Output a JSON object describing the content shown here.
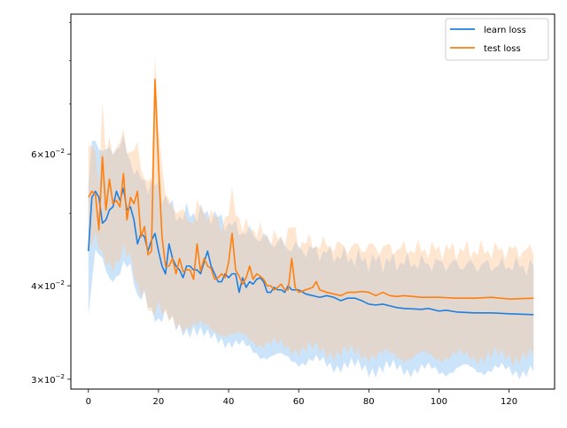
{
  "chart_data": {
    "type": "line",
    "title": "",
    "xlabel": "",
    "ylabel": "",
    "yscale": "log",
    "xlim": [
      -5,
      133
    ],
    "ylim": [
      0.0291,
      0.0923
    ],
    "grid": false,
    "legend_position": "top-right",
    "x_ticks": [
      0,
      20,
      40,
      60,
      80,
      100,
      120
    ],
    "x_tick_labels": [
      "0",
      "20",
      "40",
      "60",
      "80",
      "100",
      "120"
    ],
    "y_ticks": [
      0.03,
      0.04,
      0.06
    ],
    "y_tick_labels": [
      {
        "base": "3",
        "mult": "×",
        "exp_base": "10",
        "exp": "−2"
      },
      {
        "base": "4",
        "mult": "×",
        "exp_base": "10",
        "exp": "−2"
      },
      {
        "base": "6",
        "mult": "×",
        "exp_base": "10",
        "exp": "−2"
      }
    ],
    "y_minor_ticks": [
      0.05,
      0.07,
      0.08,
      0.09
    ],
    "series": [
      {
        "name": "learn loss",
        "color": "#1f77b4",
        "line_color": "#1f7fe0",
        "band_color": "#8fc4f5",
        "band_opacity": 0.45,
        "knots": [
          [
            0,
            0.0445
          ],
          [
            1,
            0.0525
          ],
          [
            2,
            0.0535
          ],
          [
            3,
            0.0525
          ],
          [
            4,
            0.0485
          ],
          [
            5,
            0.049
          ],
          [
            6,
            0.0505
          ],
          [
            7,
            0.051
          ],
          [
            8,
            0.0535
          ],
          [
            9,
            0.052
          ],
          [
            10,
            0.054
          ],
          [
            11,
            0.0505
          ],
          [
            12,
            0.051
          ],
          [
            13,
            0.049
          ],
          [
            14,
            0.0455
          ],
          [
            15,
            0.047
          ],
          [
            16,
            0.0465
          ],
          [
            17,
            0.0445
          ],
          [
            18,
            0.046
          ],
          [
            19,
            0.047
          ],
          [
            20,
            0.0445
          ],
          [
            21,
            0.0425
          ],
          [
            22,
            0.0415
          ],
          [
            23,
            0.0455
          ],
          [
            24,
            0.0435
          ],
          [
            25,
            0.0425
          ],
          [
            26,
            0.042
          ],
          [
            27,
            0.041
          ],
          [
            28,
            0.0425
          ],
          [
            29,
            0.0425
          ],
          [
            30,
            0.042
          ],
          [
            31,
            0.042
          ],
          [
            32,
            0.0415
          ],
          [
            33,
            0.043
          ],
          [
            34,
            0.0445
          ],
          [
            35,
            0.0425
          ],
          [
            36,
            0.0415
          ],
          [
            37,
            0.0405
          ],
          [
            38,
            0.0405
          ],
          [
            39,
            0.0415
          ],
          [
            40,
            0.041
          ],
          [
            41,
            0.0415
          ],
          [
            42,
            0.0415
          ],
          [
            43,
            0.0392
          ],
          [
            44,
            0.041
          ],
          [
            45,
            0.0398
          ],
          [
            46,
            0.0405
          ],
          [
            47,
            0.0402
          ],
          [
            48,
            0.0408
          ],
          [
            49,
            0.041
          ],
          [
            50,
            0.0405
          ],
          [
            51,
            0.0392
          ],
          [
            52,
            0.0392
          ],
          [
            53,
            0.0398
          ],
          [
            54,
            0.0395
          ],
          [
            55,
            0.0395
          ],
          [
            56,
            0.0392
          ],
          [
            57,
            0.04
          ],
          [
            58,
            0.0395
          ],
          [
            60,
            0.0395
          ],
          [
            62,
            0.039
          ],
          [
            64,
            0.0388
          ],
          [
            66,
            0.0386
          ],
          [
            68,
            0.0388
          ],
          [
            70,
            0.0386
          ],
          [
            72,
            0.0382
          ],
          [
            74,
            0.0385
          ],
          [
            76,
            0.0385
          ],
          [
            78,
            0.0382
          ],
          [
            80,
            0.0378
          ],
          [
            82,
            0.0377
          ],
          [
            84,
            0.0378
          ],
          [
            86,
            0.0376
          ],
          [
            88,
            0.0374
          ],
          [
            90,
            0.0373
          ],
          [
            95,
            0.0372
          ],
          [
            97,
            0.0373
          ],
          [
            100,
            0.037
          ],
          [
            102,
            0.0371
          ],
          [
            105,
            0.0369
          ],
          [
            110,
            0.0368
          ],
          [
            115,
            0.0368
          ],
          [
            120,
            0.0367
          ],
          [
            127,
            0.0366
          ]
        ],
        "band_lower": [
          [
            0,
            0.0365
          ],
          [
            2,
            0.044
          ],
          [
            4,
            0.043
          ],
          [
            6,
            0.041
          ],
          [
            8,
            0.0415
          ],
          [
            10,
            0.043
          ],
          [
            12,
            0.042
          ],
          [
            14,
            0.038
          ],
          [
            16,
            0.039
          ],
          [
            18,
            0.0375
          ],
          [
            20,
            0.036
          ],
          [
            22,
            0.0365
          ],
          [
            25,
            0.035
          ],
          [
            28,
            0.035
          ],
          [
            30,
            0.0352
          ],
          [
            34,
            0.034
          ],
          [
            38,
            0.034
          ],
          [
            42,
            0.0335
          ],
          [
            46,
            0.0328
          ],
          [
            50,
            0.0324
          ],
          [
            55,
            0.032
          ],
          [
            60,
            0.0318
          ],
          [
            65,
            0.0316
          ],
          [
            70,
            0.0314
          ],
          [
            75,
            0.0312
          ],
          [
            80,
            0.031
          ],
          [
            90,
            0.031
          ],
          [
            100,
            0.0308
          ],
          [
            110,
            0.031
          ],
          [
            120,
            0.0308
          ],
          [
            127,
            0.0308
          ]
        ],
        "band_upper": [
          [
            0,
            0.0545
          ],
          [
            1,
            0.0615
          ],
          [
            2,
            0.062
          ],
          [
            3,
            0.062
          ],
          [
            4,
            0.061
          ],
          [
            6,
            0.06
          ],
          [
            8,
            0.0615
          ],
          [
            10,
            0.062
          ],
          [
            12,
            0.059
          ],
          [
            14,
            0.056
          ],
          [
            16,
            0.055
          ],
          [
            18,
            0.0545
          ],
          [
            20,
            0.054
          ],
          [
            22,
            0.0525
          ],
          [
            24,
            0.0505
          ],
          [
            26,
            0.0495
          ],
          [
            28,
            0.05
          ],
          [
            30,
            0.05
          ],
          [
            34,
            0.05
          ],
          [
            38,
            0.049
          ],
          [
            42,
            0.0478
          ],
          [
            46,
            0.047
          ],
          [
            50,
            0.0462
          ],
          [
            55,
            0.0455
          ],
          [
            60,
            0.0448
          ],
          [
            65,
            0.0445
          ],
          [
            70,
            0.044
          ],
          [
            75,
            0.0436
          ],
          [
            80,
            0.0432
          ],
          [
            90,
            0.043
          ],
          [
            100,
            0.0428
          ],
          [
            110,
            0.0426
          ],
          [
            120,
            0.0426
          ],
          [
            127,
            0.0424
          ]
        ]
      },
      {
        "name": "test loss",
        "color": "#ff7f0e",
        "line_color": "#ff7f0e",
        "band_color": "#fdc898",
        "band_opacity": 0.45,
        "knots": [
          [
            0,
            0.0525
          ],
          [
            1,
            0.0535
          ],
          [
            2,
            0.053
          ],
          [
            3,
            0.0475
          ],
          [
            4,
            0.0595
          ],
          [
            5,
            0.0505
          ],
          [
            6,
            0.0555
          ],
          [
            7,
            0.0515
          ],
          [
            8,
            0.052
          ],
          [
            9,
            0.051
          ],
          [
            10,
            0.0565
          ],
          [
            11,
            0.049
          ],
          [
            12,
            0.0525
          ],
          [
            13,
            0.0515
          ],
          [
            14,
            0.0535
          ],
          [
            15,
            0.0465
          ],
          [
            16,
            0.048
          ],
          [
            17,
            0.044
          ],
          [
            18,
            0.0445
          ],
          [
            19,
            0.0755
          ],
          [
            20,
            0.058
          ],
          [
            21,
            0.0465
          ],
          [
            22,
            0.0425
          ],
          [
            23,
            0.0425
          ],
          [
            24,
            0.0435
          ],
          [
            25,
            0.0415
          ],
          [
            26,
            0.0435
          ],
          [
            27,
            0.0418
          ],
          [
            28,
            0.042
          ],
          [
            29,
            0.042
          ],
          [
            30,
            0.0408
          ],
          [
            31,
            0.0455
          ],
          [
            32,
            0.0418
          ],
          [
            33,
            0.0435
          ],
          [
            34,
            0.0425
          ],
          [
            35,
            0.0422
          ],
          [
            36,
            0.0408
          ],
          [
            37,
            0.041
          ],
          [
            38,
            0.0415
          ],
          [
            39,
            0.041
          ],
          [
            40,
            0.043
          ],
          [
            41,
            0.047
          ],
          [
            42,
            0.042
          ],
          [
            43,
            0.0412
          ],
          [
            44,
            0.0402
          ],
          [
            45,
            0.041
          ],
          [
            46,
            0.0425
          ],
          [
            47,
            0.0408
          ],
          [
            48,
            0.0415
          ],
          [
            49,
            0.0412
          ],
          [
            50,
            0.0408
          ],
          [
            51,
            0.04
          ],
          [
            52,
            0.04
          ],
          [
            53,
            0.0395
          ],
          [
            54,
            0.0398
          ],
          [
            55,
            0.0402
          ],
          [
            56,
            0.0395
          ],
          [
            57,
            0.0395
          ],
          [
            58,
            0.0435
          ],
          [
            59,
            0.0398
          ],
          [
            60,
            0.0392
          ],
          [
            62,
            0.0395
          ],
          [
            64,
            0.0398
          ],
          [
            65,
            0.0405
          ],
          [
            66,
            0.0395
          ],
          [
            68,
            0.0392
          ],
          [
            70,
            0.039
          ],
          [
            72,
            0.0388
          ],
          [
            74,
            0.0392
          ],
          [
            76,
            0.0392
          ],
          [
            78,
            0.0393
          ],
          [
            80,
            0.0392
          ],
          [
            82,
            0.0388
          ],
          [
            84,
            0.0392
          ],
          [
            86,
            0.0388
          ],
          [
            88,
            0.0387
          ],
          [
            90,
            0.0388
          ],
          [
            95,
            0.0386
          ],
          [
            100,
            0.0386
          ],
          [
            105,
            0.0385
          ],
          [
            110,
            0.0385
          ],
          [
            115,
            0.0386
          ],
          [
            120,
            0.0384
          ],
          [
            127,
            0.0385
          ]
        ],
        "band_lower": [
          [
            0,
            0.044
          ],
          [
            2,
            0.046
          ],
          [
            4,
            0.044
          ],
          [
            6,
            0.043
          ],
          [
            8,
            0.043
          ],
          [
            10,
            0.0445
          ],
          [
            12,
            0.043
          ],
          [
            14,
            0.0395
          ],
          [
            16,
            0.0395
          ],
          [
            18,
            0.037
          ],
          [
            20,
            0.0375
          ],
          [
            22,
            0.036
          ],
          [
            25,
            0.0355
          ],
          [
            28,
            0.0355
          ],
          [
            30,
            0.0355
          ],
          [
            34,
            0.035
          ],
          [
            38,
            0.0348
          ],
          [
            42,
            0.0342
          ],
          [
            46,
            0.034
          ],
          [
            50,
            0.0335
          ],
          [
            55,
            0.0332
          ],
          [
            60,
            0.033
          ],
          [
            65,
            0.0328
          ],
          [
            70,
            0.0326
          ],
          [
            75,
            0.0325
          ],
          [
            80,
            0.0324
          ],
          [
            90,
            0.0322
          ],
          [
            100,
            0.0322
          ],
          [
            110,
            0.0322
          ],
          [
            120,
            0.0322
          ],
          [
            127,
            0.0322
          ]
        ],
        "band_upper": [
          [
            0,
            0.0595
          ],
          [
            1,
            0.0625
          ],
          [
            2,
            0.0605
          ],
          [
            3,
            0.0555
          ],
          [
            4,
            0.0685
          ],
          [
            5,
            0.06
          ],
          [
            6,
            0.063
          ],
          [
            8,
            0.06
          ],
          [
            10,
            0.064
          ],
          [
            12,
            0.06
          ],
          [
            14,
            0.061
          ],
          [
            16,
            0.056
          ],
          [
            18,
            0.0545
          ],
          [
            19,
            0.082
          ],
          [
            20,
            0.066
          ],
          [
            22,
            0.052
          ],
          [
            24,
            0.0515
          ],
          [
            26,
            0.05
          ],
          [
            28,
            0.0495
          ],
          [
            30,
            0.049
          ],
          [
            31,
            0.051
          ],
          [
            34,
            0.05
          ],
          [
            38,
            0.0485
          ],
          [
            40,
            0.0495
          ],
          [
            41,
            0.053
          ],
          [
            44,
            0.0475
          ],
          [
            46,
            0.048
          ],
          [
            50,
            0.0468
          ],
          [
            55,
            0.046
          ],
          [
            58,
            0.0478
          ],
          [
            60,
            0.0458
          ],
          [
            65,
            0.0455
          ],
          [
            70,
            0.0452
          ],
          [
            75,
            0.045
          ],
          [
            80,
            0.045
          ],
          [
            90,
            0.0448
          ],
          [
            100,
            0.0447
          ],
          [
            110,
            0.0446
          ],
          [
            120,
            0.0446
          ],
          [
            127,
            0.0445
          ]
        ]
      }
    ],
    "legend": [
      "learn loss",
      "test loss"
    ]
  }
}
